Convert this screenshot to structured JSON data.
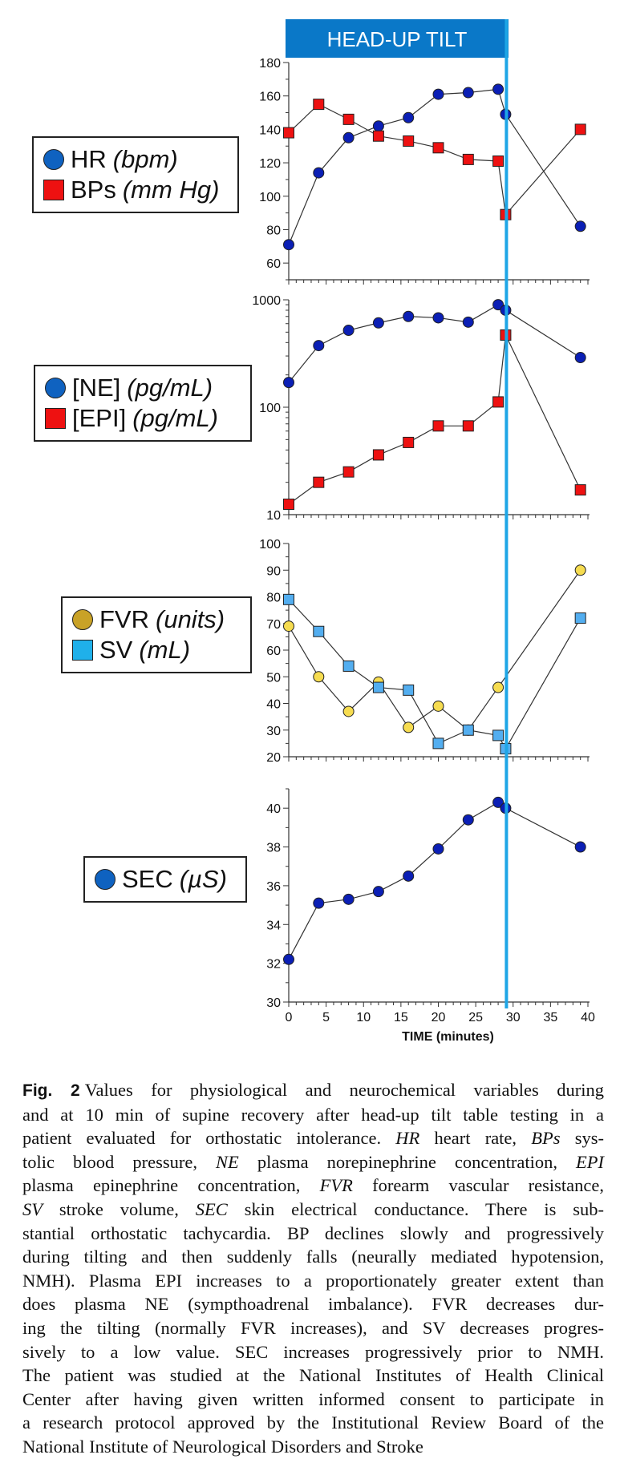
{
  "banner": "HEAD-UP TILT",
  "colors": {
    "banner_bg": "#0a78c8",
    "banner_text": "#ffffff",
    "marker_line": "#1ea6e6",
    "blue_circle": "#0b1fb5",
    "red_square": "#ee1111",
    "yellow_circle": "#f6dc50",
    "light_blue_square": "#53aef0",
    "legend_fvr": "#c9a227",
    "legend_sv": "#1fb0ea",
    "legend_hr": "#0f62c0",
    "legend_ne": "#0f62c0",
    "legend_sec": "#0f62c0"
  },
  "legends": [
    {
      "items": [
        {
          "name": "HR",
          "unit": "(bpm)",
          "shape": "circle",
          "color": "#0f62c0"
        },
        {
          "name": "BPs",
          "unit": "(mm Hg)",
          "shape": "square",
          "color": "#ee1111"
        }
      ]
    },
    {
      "items": [
        {
          "name": "[NE]",
          "unit": "(pg/mL)",
          "shape": "circle",
          "color": "#0f62c0"
        },
        {
          "name": "[EPI]",
          "unit": "(pg/mL)",
          "shape": "square",
          "color": "#ee1111"
        }
      ]
    },
    {
      "items": [
        {
          "name": "FVR",
          "unit": "(units)",
          "shape": "circle",
          "color": "#c9a227"
        },
        {
          "name": "SV",
          "unit": "(mL)",
          "shape": "square",
          "color": "#1fb0ea"
        }
      ]
    },
    {
      "items": [
        {
          "name": "SEC",
          "unit": "(µS)",
          "shape": "circle",
          "color": "#0f62c0"
        }
      ]
    }
  ],
  "chart_data": [
    {
      "type": "line",
      "scale": "linear",
      "ylim": [
        50,
        180
      ],
      "yticks": [
        60,
        80,
        100,
        120,
        140,
        160,
        180
      ],
      "xlim": [
        0,
        40
      ],
      "xlabel": "",
      "tilt_marker_x": 29,
      "series": [
        {
          "name": "HR",
          "unit": "(bpm)",
          "marker": "circle",
          "color": "#0b1fb5",
          "x": [
            0,
            4,
            8,
            12,
            16,
            20,
            24,
            28,
            29,
            39
          ],
          "y": [
            71,
            114,
            135,
            142,
            147,
            161,
            162,
            164,
            149,
            82
          ]
        },
        {
          "name": "BPs",
          "unit": "(mm Hg)",
          "marker": "square",
          "color": "#ee1111",
          "x": [
            0,
            4,
            8,
            12,
            16,
            20,
            24,
            28,
            29,
            39
          ],
          "y": [
            138,
            155,
            146,
            136,
            133,
            129,
            122,
            121,
            89,
            140
          ]
        }
      ]
    },
    {
      "type": "line",
      "scale": "log",
      "ylim": [
        10,
        1000
      ],
      "yticks": [
        10,
        100,
        1000
      ],
      "xlim": [
        0,
        40
      ],
      "xlabel": "",
      "tilt_marker_x": 29,
      "series": [
        {
          "name": "[NE]",
          "unit": "(pg/mL)",
          "marker": "circle",
          "color": "#0b1fb5",
          "x": [
            0,
            4,
            8,
            12,
            16,
            20,
            24,
            28,
            29,
            39
          ],
          "y": [
            170,
            375,
            520,
            610,
            700,
            680,
            620,
            900,
            800,
            290
          ]
        },
        {
          "name": "[EPI]",
          "unit": "(pg/mL)",
          "marker": "square",
          "color": "#ee1111",
          "x": [
            0,
            4,
            8,
            12,
            16,
            20,
            24,
            28,
            29,
            39
          ],
          "y": [
            12.5,
            20,
            25,
            36,
            47,
            67,
            67,
            112,
            470,
            17
          ]
        }
      ]
    },
    {
      "type": "line",
      "scale": "linear",
      "ylim": [
        20,
        100
      ],
      "yticks": [
        20,
        30,
        40,
        50,
        60,
        70,
        80,
        90,
        100
      ],
      "xlim": [
        0,
        40
      ],
      "xlabel": "",
      "tilt_marker_x": 29,
      "series": [
        {
          "name": "FVR",
          "unit": "(units)",
          "marker": "circle",
          "color": "#f6dc50",
          "x": [
            0,
            4,
            8,
            12,
            16,
            20,
            24,
            28,
            39
          ],
          "y": [
            69,
            50,
            37,
            48,
            31,
            39,
            30,
            46,
            90
          ]
        },
        {
          "name": "SV",
          "unit": "(mL)",
          "marker": "square",
          "color": "#53aef0",
          "x": [
            0,
            4,
            8,
            12,
            16,
            20,
            24,
            28,
            29,
            39
          ],
          "y": [
            79,
            67,
            54,
            46,
            45,
            25,
            30,
            28,
            23,
            72
          ]
        }
      ]
    },
    {
      "type": "line",
      "scale": "linear",
      "ylim": [
        30,
        41
      ],
      "yticks": [
        30,
        32,
        34,
        36,
        38,
        40
      ],
      "xlim": [
        0,
        40
      ],
      "xticks": [
        0,
        5,
        10,
        15,
        20,
        25,
        30,
        35,
        40
      ],
      "xlabel": "TIME (minutes)",
      "tilt_marker_x": 29,
      "series": [
        {
          "name": "SEC",
          "unit": "(µS)",
          "marker": "circle",
          "color": "#0b1fb5",
          "x": [
            0,
            4,
            8,
            12,
            16,
            20,
            24,
            28,
            29,
            39
          ],
          "y": [
            32.2,
            35.1,
            35.3,
            35.7,
            36.5,
            37.9,
            39.4,
            40.3,
            40.0,
            38.0
          ]
        }
      ]
    }
  ],
  "caption": {
    "label": "Fig. 2",
    "lines": [
      [
        {
          "t": "Values for physiological and neurochemical variables during"
        }
      ],
      [
        {
          "t": "and at 10 min of supine recovery after head-up tilt table testing in a"
        }
      ],
      [
        {
          "t": "patient evaluated for orthostatic intolerance. "
        },
        {
          "t": "HR",
          "i": true
        },
        {
          "t": " heart rate, "
        },
        {
          "t": "BPs",
          "i": true
        },
        {
          "t": " sys-"
        }
      ],
      [
        {
          "t": "tolic blood pressure, "
        },
        {
          "t": "NE",
          "i": true
        },
        {
          "t": " plasma norepinephrine concentration, "
        },
        {
          "t": "EPI",
          "i": true
        }
      ],
      [
        {
          "t": "plasma epinephrine concentration, "
        },
        {
          "t": "FVR",
          "i": true
        },
        {
          "t": " forearm vascular resistance,"
        }
      ],
      [
        {
          "t": "SV",
          "i": true
        },
        {
          "t": " stroke volume, "
        },
        {
          "t": "SEC",
          "i": true
        },
        {
          "t": " skin electrical conductance. There is sub-"
        }
      ],
      [
        {
          "t": "stantial orthostatic tachycardia. BP declines slowly and progressively"
        }
      ],
      [
        {
          "t": "during tilting and then suddenly falls (neurally mediated hypotension,"
        }
      ],
      [
        {
          "t": "NMH). Plasma EPI increases to a proportionately greater extent than"
        }
      ],
      [
        {
          "t": "does plasma NE (sympthoadrenal imbalance). FVR decreases dur-"
        }
      ],
      [
        {
          "t": "ing the tilting (normally FVR increases), and SV decreases progres-"
        }
      ],
      [
        {
          "t": "sively to a low value. SEC increases progressively prior to NMH."
        }
      ],
      [
        {
          "t": "The patient was studied at the National Institutes of Health Clinical"
        }
      ],
      [
        {
          "t": "Center after having given written informed consent to participate in"
        }
      ],
      [
        {
          "t": "a research protocol approved by the Institutional Review Board of the"
        }
      ],
      [
        {
          "t": "National Institute of Neurological Disorders and Stroke"
        }
      ]
    ]
  }
}
